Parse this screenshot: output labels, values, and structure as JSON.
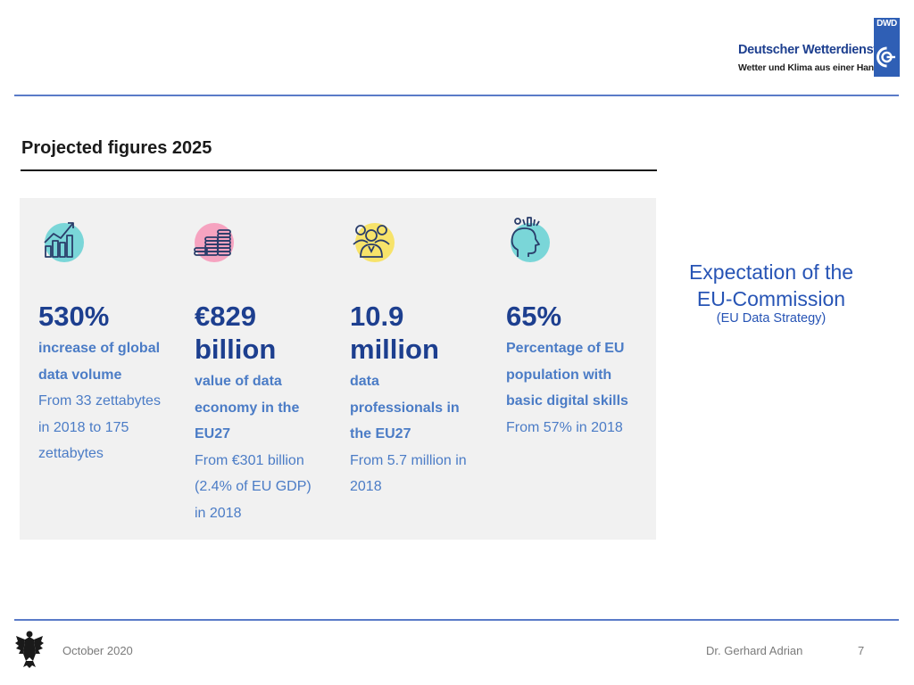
{
  "header": {
    "logo_line1": "Deutscher Wetterdienst",
    "logo_line2": "Wetter und Klima aus einer Hand",
    "logo_mark_text": "DWD",
    "accent_color": "#2f5fb5"
  },
  "main": {
    "title": "Projected figures 2025",
    "stats": [
      {
        "icon": "chart-growth-icon",
        "icon_color": "#7ad6d8",
        "value": "530%",
        "subtitle": [
          "increase of global",
          "data volume"
        ],
        "note": [
          "From 33 zettabytes",
          "in 2018 to 175",
          "zettabytes"
        ]
      },
      {
        "icon": "coin-stack-icon",
        "icon_color": "#f6a3c0",
        "value": "€829\nbillion",
        "subtitle": [
          "value of data",
          "economy in the",
          "EU27"
        ],
        "note": [
          "From €301 billion",
          "(2.4% of EU GDP)",
          "in 2018"
        ]
      },
      {
        "icon": "people-group-icon",
        "icon_color": "#f7e36a",
        "value": "10.9\nmillion",
        "subtitle": [
          "data",
          "professionals in",
          "the EU27"
        ],
        "note": [
          "From 5.7 million in",
          "2018"
        ]
      },
      {
        "icon": "head-ideas-icon",
        "icon_color": "#7ad6d8",
        "value": "65%",
        "subtitle": [
          "Percentage of EU",
          "population with",
          "basic digital skills"
        ],
        "note": [
          "From 57% in 2018"
        ]
      }
    ]
  },
  "side_note": {
    "line1": "Expectation of the EU-Commission",
    "line2": "(EU Data Strategy)"
  },
  "footer": {
    "date": "October 2020",
    "author": "Dr. Gerhard Adrian",
    "page": "7"
  }
}
